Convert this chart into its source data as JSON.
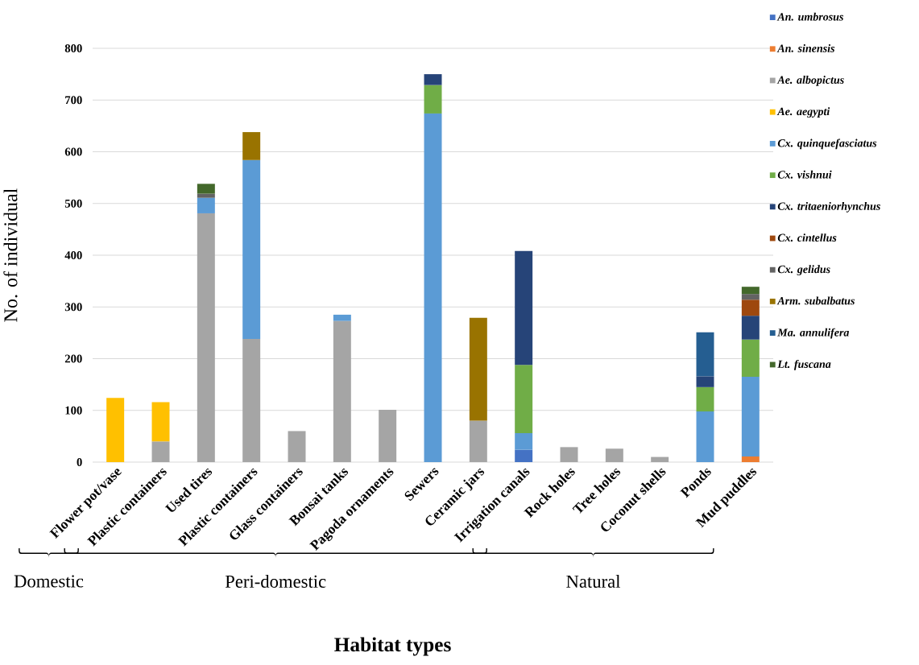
{
  "chart_data": {
    "type": "bar",
    "stacked": true,
    "categories": [
      "Flower pot/vase",
      "Plastic containers",
      "Used tires",
      "Plastic containers",
      "Glass containers",
      "Bonsai tanks",
      "Pagoda ornaments",
      "Sewers",
      "Ceramic jars",
      "Irrigation canals",
      "Rock holes",
      "Tree holes",
      "Coconut shells",
      "Ponds",
      "Mud puddles"
    ],
    "xlabel": "Habitat types",
    "ylabel": "No. of individual",
    "ylim": [
      0,
      800
    ],
    "yticks": [
      0,
      100,
      200,
      300,
      400,
      500,
      600,
      700,
      800
    ],
    "grid": "y",
    "legend": "right",
    "annotations": [
      "Domestic",
      "Peri-domestic",
      "Natural"
    ],
    "series": [
      {
        "name": "An. umbrosus",
        "color": "#4472c4",
        "values": [
          null,
          null,
          null,
          null,
          null,
          null,
          null,
          null,
          null,
          24,
          null,
          null,
          null,
          null,
          null
        ]
      },
      {
        "name": "An. sinensis",
        "color": "#ed7d31",
        "values": [
          null,
          null,
          null,
          null,
          null,
          null,
          null,
          null,
          null,
          null,
          null,
          null,
          null,
          null,
          11
        ]
      },
      {
        "name": "Ae. albopictus",
        "color": "#a5a5a5",
        "values": [
          null,
          40,
          481,
          238,
          60,
          273,
          101,
          null,
          80,
          null,
          29,
          26,
          10,
          null,
          null
        ]
      },
      {
        "name": "Ae. aegypti",
        "color": "#ffc000",
        "values": [
          124,
          76,
          null,
          null,
          null,
          null,
          null,
          null,
          null,
          null,
          null,
          null,
          null,
          null,
          null
        ]
      },
      {
        "name": "Cx. quinquefasciatus",
        "color": "#5b9bd5",
        "values": [
          null,
          null,
          30,
          346,
          null,
          12,
          null,
          674,
          null,
          32,
          null,
          null,
          null,
          98,
          154
        ]
      },
      {
        "name": "Cx. vishnui",
        "color": "#70ad47",
        "values": [
          null,
          null,
          null,
          null,
          null,
          null,
          null,
          55,
          null,
          132,
          null,
          null,
          null,
          47,
          72
        ]
      },
      {
        "name": "Cx. tritaeniorhynchus",
        "color": "#264478",
        "values": [
          null,
          null,
          null,
          null,
          null,
          null,
          null,
          21,
          null,
          220,
          null,
          null,
          null,
          21,
          46
        ]
      },
      {
        "name": "Cx. cintellus",
        "color": "#9e480e",
        "values": [
          null,
          null,
          null,
          null,
          null,
          null,
          null,
          null,
          null,
          null,
          null,
          null,
          null,
          null,
          31
        ]
      },
      {
        "name": "Cx. gelidus",
        "color": "#636363",
        "values": [
          null,
          null,
          8,
          null,
          null,
          null,
          null,
          null,
          null,
          null,
          null,
          null,
          null,
          null,
          11
        ]
      },
      {
        "name": "Arm. subalbatus",
        "color": "#997300",
        "values": [
          null,
          null,
          null,
          54,
          null,
          null,
          null,
          null,
          199,
          null,
          null,
          null,
          null,
          null,
          null
        ]
      },
      {
        "name": "Ma. annulifera",
        "color": "#255e91",
        "values": [
          null,
          null,
          null,
          null,
          null,
          null,
          null,
          null,
          null,
          null,
          null,
          null,
          null,
          85,
          null
        ]
      },
      {
        "name": "Lt. fuscana",
        "color": "#43682b",
        "values": [
          null,
          null,
          19,
          null,
          null,
          null,
          null,
          null,
          null,
          null,
          null,
          null,
          null,
          null,
          14
        ]
      }
    ]
  }
}
